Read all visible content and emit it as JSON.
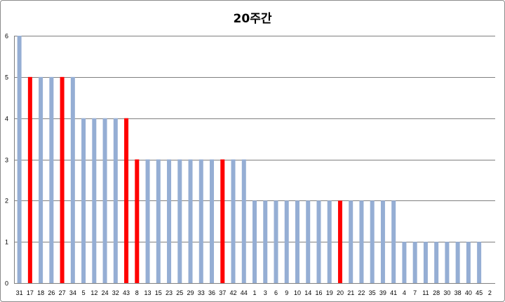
{
  "chart_data": {
    "type": "bar",
    "title": "20주간",
    "xlabel": "",
    "ylabel": "",
    "ylim": [
      0,
      6
    ],
    "yticks": [
      "0",
      "1",
      "2",
      "3",
      "4",
      "5",
      "6"
    ],
    "grid": true,
    "legend": "none",
    "colors": {
      "default": "#95aed4",
      "highlight": "#ff0000"
    },
    "categories": [
      "31",
      "17",
      "18",
      "26",
      "27",
      "34",
      "5",
      "12",
      "24",
      "32",
      "43",
      "8",
      "13",
      "15",
      "23",
      "25",
      "29",
      "33",
      "36",
      "37",
      "42",
      "44",
      "1",
      "3",
      "6",
      "9",
      "10",
      "14",
      "16",
      "19",
      "20",
      "21",
      "22",
      "35",
      "39",
      "41",
      "4",
      "7",
      "11",
      "28",
      "30",
      "38",
      "40",
      "45",
      "2"
    ],
    "values": [
      6,
      5,
      5,
      5,
      5,
      5,
      4,
      4,
      4,
      4,
      4,
      3,
      3,
      3,
      3,
      3,
      3,
      3,
      3,
      3,
      3,
      3,
      2,
      2,
      2,
      2,
      2,
      2,
      2,
      2,
      2,
      2,
      2,
      2,
      2,
      2,
      1,
      1,
      1,
      1,
      1,
      1,
      1,
      1,
      0
    ],
    "highlighted": [
      "17",
      "27",
      "43",
      "8",
      "37",
      "20"
    ]
  }
}
